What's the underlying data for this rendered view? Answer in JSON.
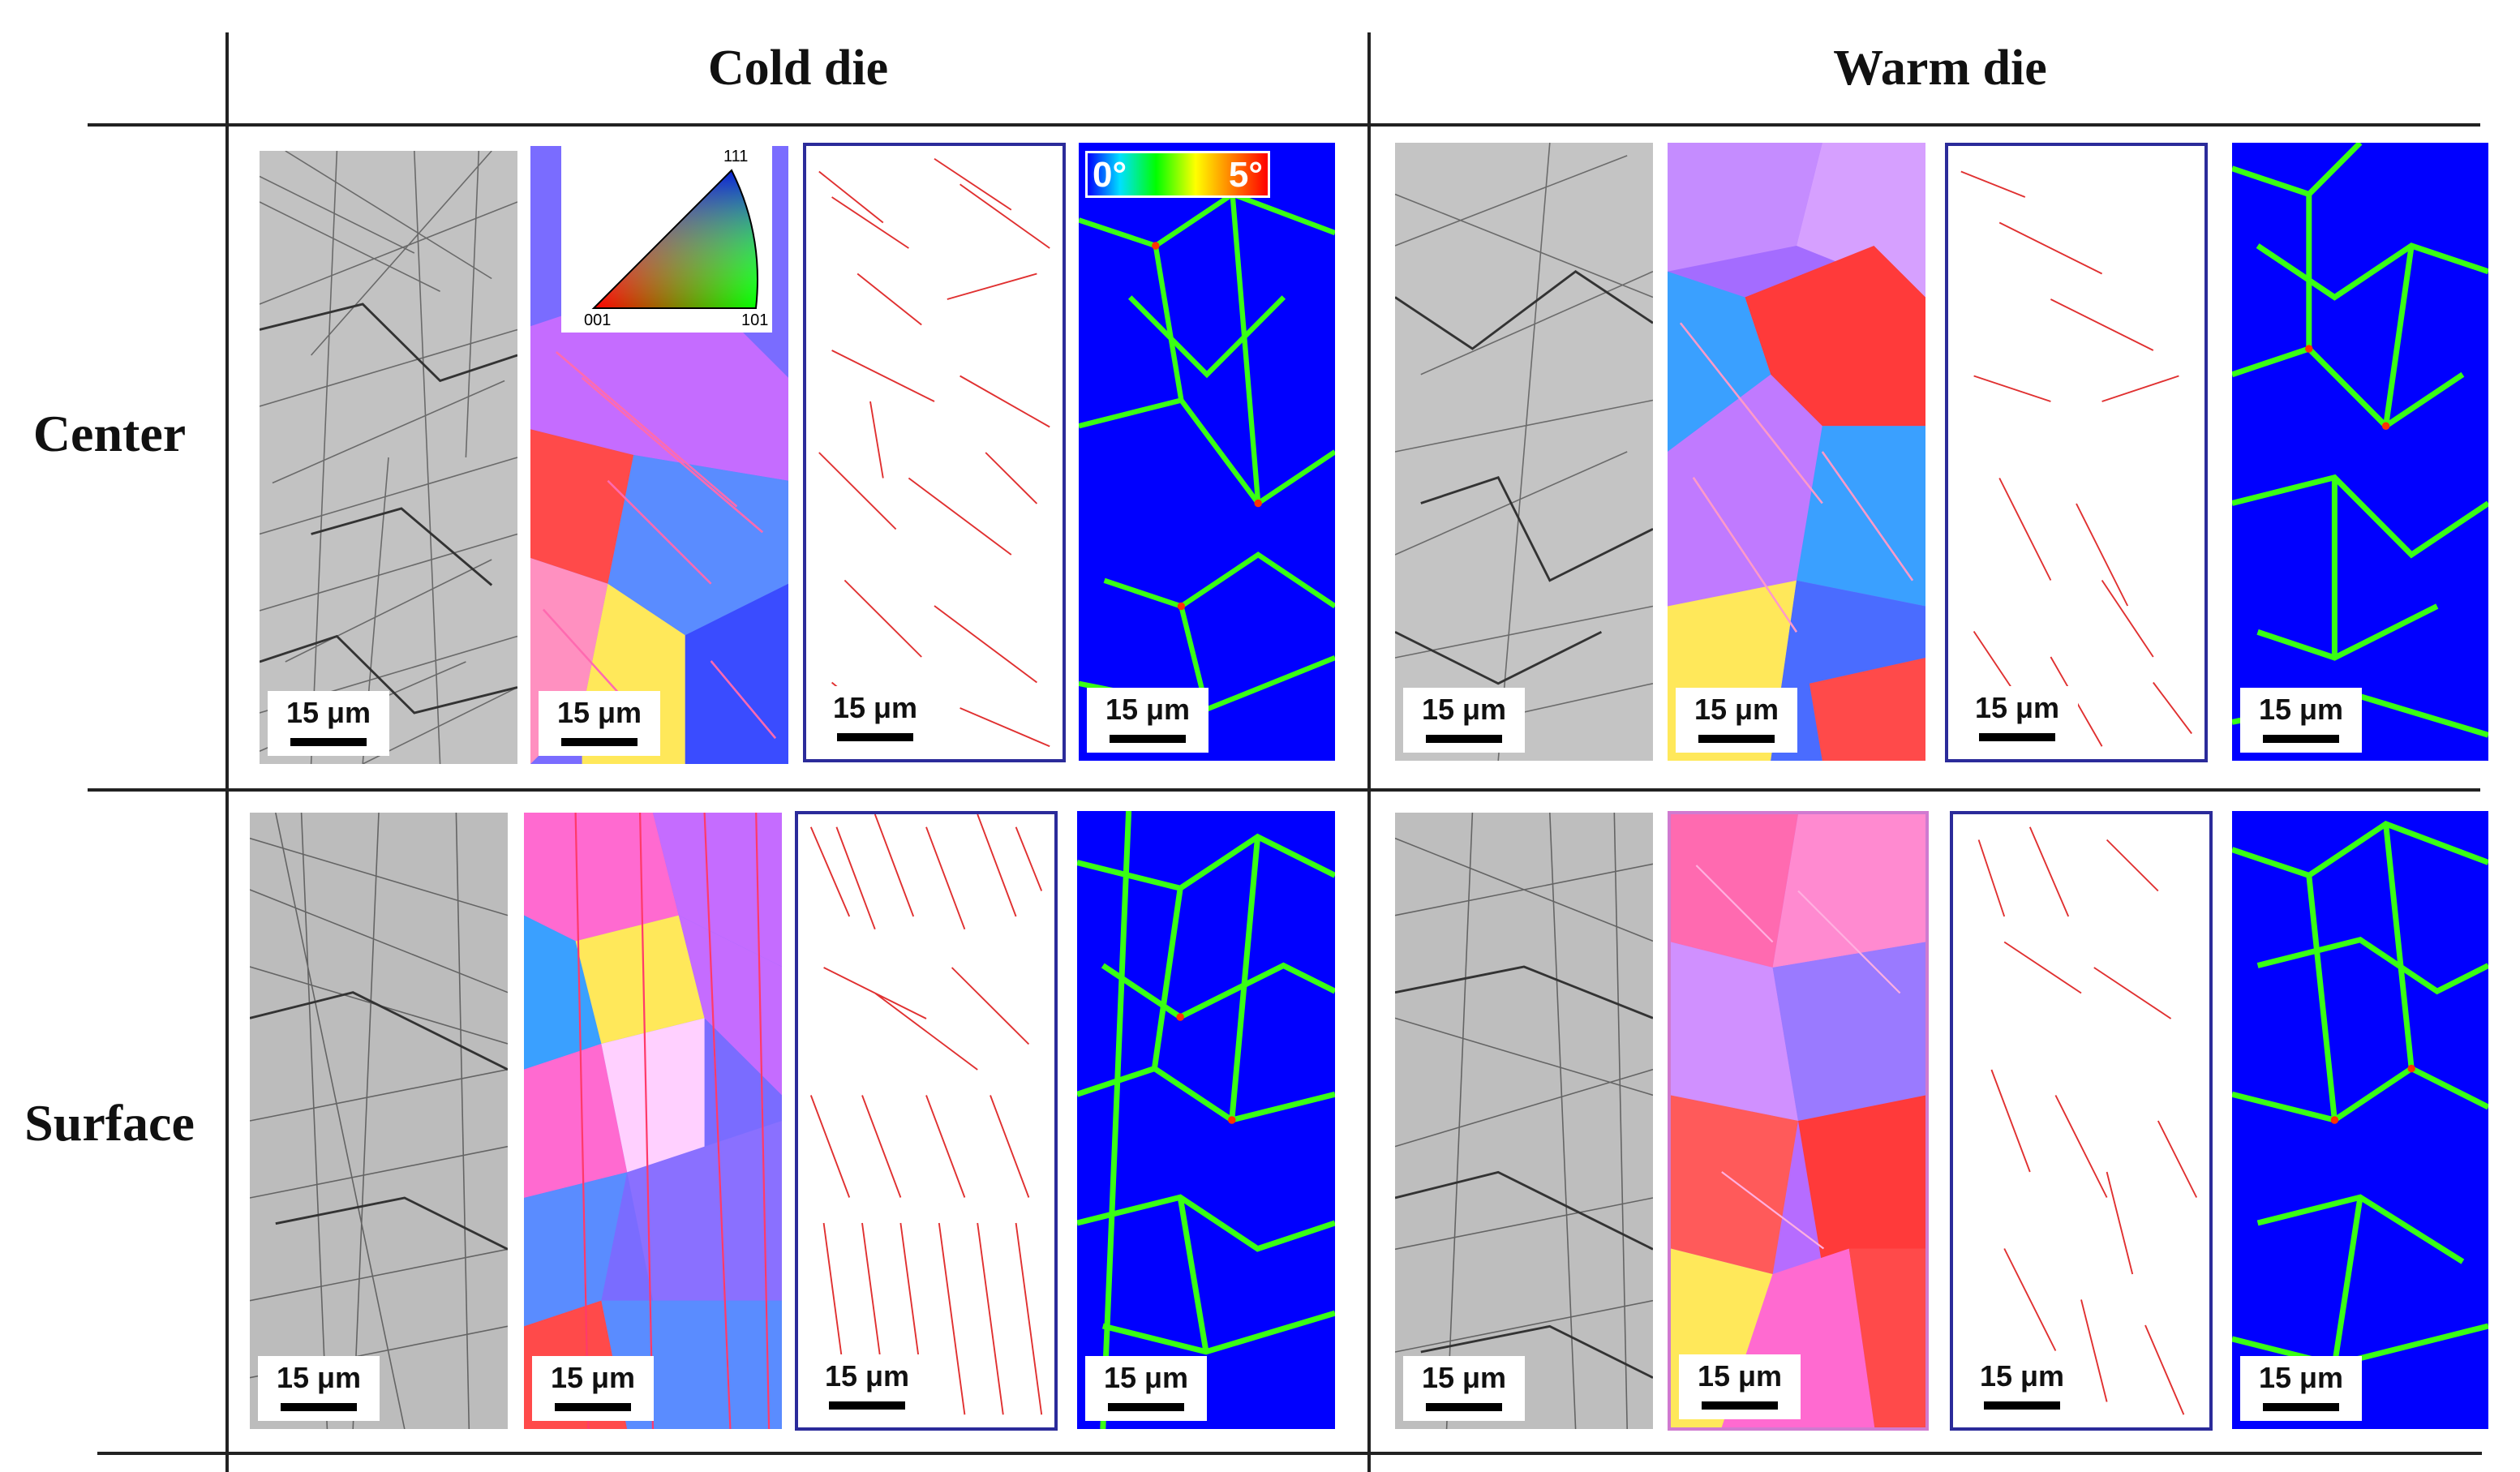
{
  "column_headers": [
    "Cold die",
    "Warm die"
  ],
  "row_headers": [
    "Center",
    "Surface"
  ],
  "scale_bar_label": "15 μm",
  "ipf_legend": {
    "corner_labels": [
      "111",
      "001",
      "101"
    ]
  },
  "kam_legend": {
    "min_label": "0°",
    "max_label": "5°"
  },
  "panel_types": [
    "band-contrast",
    "IPF-map",
    "twin-boundaries",
    "KAM-map"
  ],
  "colors": {
    "frame": "#2b2b9a",
    "twin_lines": "#e03030",
    "kam_background": "#0000ff",
    "kam_network": "#39ff14"
  }
}
